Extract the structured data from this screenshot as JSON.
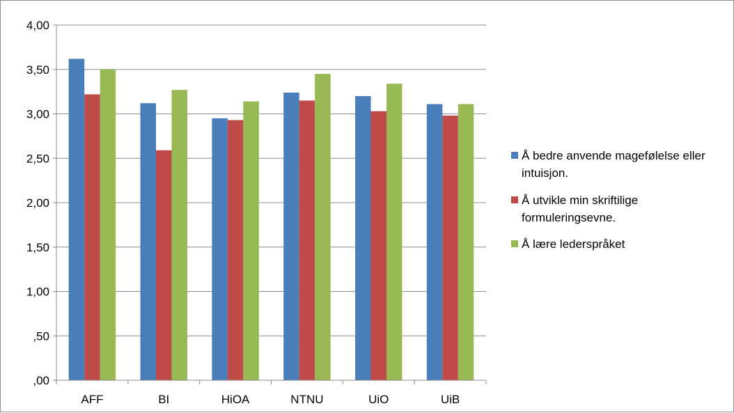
{
  "chart_data": {
    "type": "bar",
    "categories": [
      "AFF",
      "BI",
      "HiOA",
      "NTNU",
      "UiO",
      "UiB"
    ],
    "series": [
      {
        "name": "Å bedre anvende magefølelse eller intuisjon.",
        "values": [
          3.62,
          3.12,
          2.95,
          3.24,
          3.2,
          3.11
        ]
      },
      {
        "name": "Å utvikle min skriftilige formuleringsevne.",
        "values": [
          3.22,
          2.59,
          2.93,
          3.15,
          3.03,
          2.98
        ]
      },
      {
        "name": "Å lære lederspråket",
        "values": [
          3.5,
          3.27,
          3.14,
          3.45,
          3.34,
          3.11
        ]
      }
    ],
    "ylim": [
      0,
      4
    ],
    "yticks": [
      0,
      0.5,
      1,
      1.5,
      2,
      2.5,
      3,
      3.5,
      4
    ],
    "ytick_labels": [
      ",00",
      ",50",
      "1,00",
      "1,50",
      "2,00",
      "2,50",
      "3,00",
      "3,50",
      "4,00"
    ],
    "grid": true,
    "legend_position": "right",
    "colors": [
      "#4A7EBB",
      "#BE4B48",
      "#98B954"
    ],
    "legend_lines": [
      [
        "Å bedre anvende magefølelse eller",
        "intuisjon."
      ],
      [
        "Å utvikle min skriftilige",
        "formuleringsevne."
      ],
      [
        "Å lære lederspråket"
      ]
    ],
    "title": "",
    "xlabel": "",
    "ylabel": ""
  }
}
